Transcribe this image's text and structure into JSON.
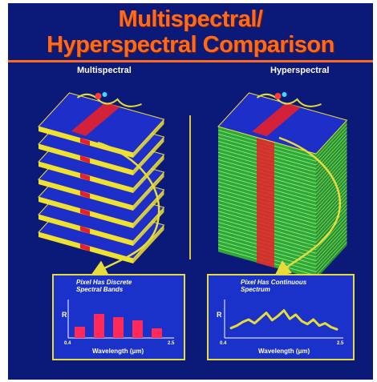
{
  "title": {
    "line1": "Multispectral/",
    "line2": "Hyperspectral Comparison"
  },
  "colors": {
    "background": "#0b1a78",
    "title": "#ff6a1a",
    "accent": "#e8dc3a",
    "panel": "#1a32c9",
    "bar": "#ff2a5a",
    "curve": "#e8dc3a"
  },
  "multispectral": {
    "label": "Multispectral",
    "layer_count": 7,
    "panel": {
      "caption_line1": "Pixel Has Discrete",
      "caption_line2": "Spectral Bands",
      "y_axis": "R",
      "x_start": "0.4",
      "x_end": "2.5",
      "x_label": "Wavelength (μm)",
      "bar_values": [
        0.35,
        0.75,
        0.65,
        0.55,
        0.3
      ]
    }
  },
  "hyperspectral": {
    "label": "Hyperspectral",
    "layer_count": 34,
    "panel": {
      "caption_line1": "Pixel Has Continuous",
      "caption_line2": "Spectrum",
      "y_axis": "R",
      "x_start": "0.4",
      "x_end": "2.5",
      "x_label": "Wavelength (μm)",
      "spectrum": [
        0.22,
        0.3,
        0.42,
        0.5,
        0.38,
        0.55,
        0.72,
        0.48,
        0.62,
        0.8,
        0.52,
        0.66,
        0.45,
        0.35,
        0.5,
        0.3,
        0.38,
        0.25,
        0.18
      ]
    }
  }
}
